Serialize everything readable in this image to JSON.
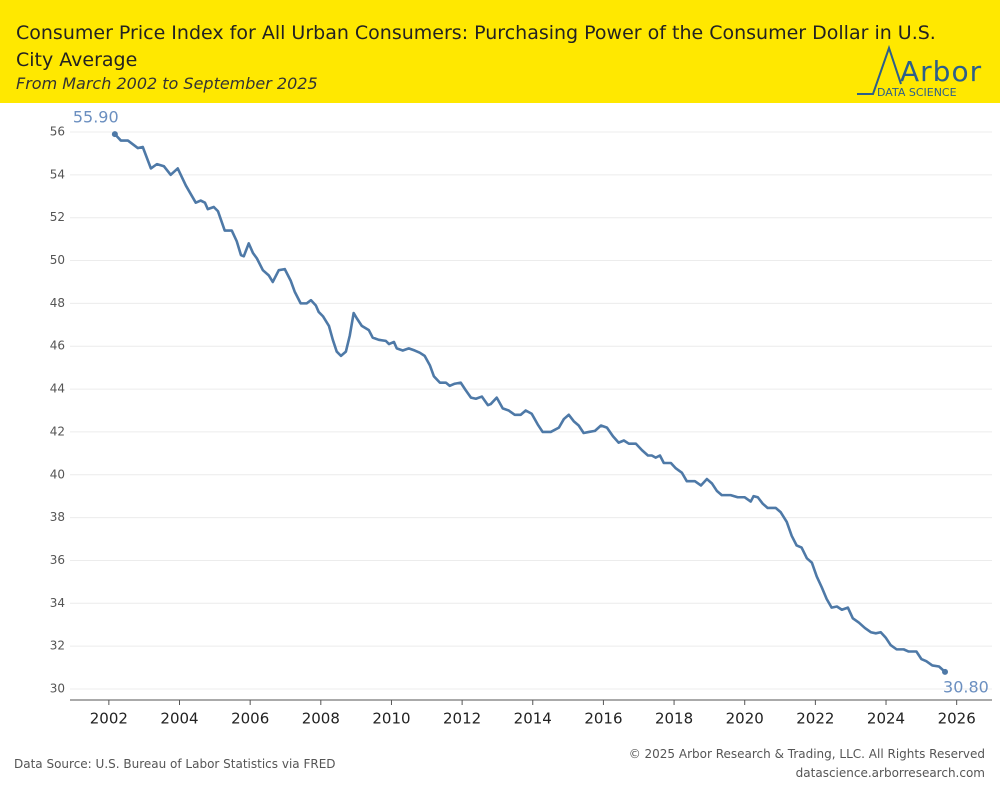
{
  "chart_data": {
    "type": "line",
    "title": "Consumer Price Index for All Urban Consumers: Purchasing Power of the Consumer Dollar in U.S. City Average",
    "subtitle": "From March 2002 to September 2025",
    "x": [
      2002.17,
      2002.34,
      2002.54,
      2002.82,
      2002.96,
      2003.19,
      2003.36,
      2003.56,
      2003.75,
      2003.95,
      2004.18,
      2004.46,
      2004.6,
      2004.72,
      2004.8,
      2004.97,
      2005.09,
      2005.28,
      2005.48,
      2005.62,
      2005.74,
      2005.82,
      2005.96,
      2006.08,
      2006.19,
      2006.36,
      2006.53,
      2006.64,
      2006.81,
      2006.98,
      2007.15,
      2007.26,
      2007.43,
      2007.6,
      2007.72,
      2007.86,
      2007.94,
      2008.06,
      2008.23,
      2008.34,
      2008.45,
      2008.57,
      2008.71,
      2008.82,
      2008.93,
      2009.02,
      2009.16,
      2009.36,
      2009.47,
      2009.64,
      2009.84,
      2009.93,
      2010.07,
      2010.15,
      2010.32,
      2010.49,
      2010.66,
      2010.8,
      2010.94,
      2011.09,
      2011.2,
      2011.37,
      2011.54,
      2011.65,
      2011.79,
      2011.96,
      2012.1,
      2012.25,
      2012.39,
      2012.56,
      2012.73,
      2012.81,
      2012.98,
      2013.15,
      2013.32,
      2013.49,
      2013.66,
      2013.8,
      2013.97,
      2014.14,
      2014.28,
      2014.51,
      2014.74,
      2014.88,
      2015.02,
      2015.16,
      2015.3,
      2015.44,
      2015.59,
      2015.76,
      2015.93,
      2016.1,
      2016.27,
      2016.43,
      2016.58,
      2016.72,
      2016.92,
      2017.09,
      2017.26,
      2017.37,
      2017.48,
      2017.6,
      2017.71,
      2017.91,
      2018.05,
      2018.22,
      2018.36,
      2018.59,
      2018.76,
      2018.93,
      2019.07,
      2019.21,
      2019.35,
      2019.6,
      2019.8,
      2020.0,
      2020.17,
      2020.25,
      2020.37,
      2020.51,
      2020.65,
      2020.88,
      2021.02,
      2021.19,
      2021.33,
      2021.47,
      2021.61,
      2021.76,
      2021.9,
      2022.04,
      2022.18,
      2022.32,
      2022.46,
      2022.61,
      2022.75,
      2022.92,
      2023.06,
      2023.23,
      2023.4,
      2023.57,
      2023.71,
      2023.85,
      2023.99,
      2024.13,
      2024.3,
      2024.5,
      2024.64,
      2024.86,
      2025.0,
      2025.14,
      2025.31,
      2025.5,
      2025.67
    ],
    "series": [
      {
        "color": "#4e79a7",
        "values": [
          55.9,
          55.6,
          55.6,
          55.25,
          55.3,
          54.3,
          54.5,
          54.4,
          54.0,
          54.3,
          53.5,
          52.7,
          52.8,
          52.7,
          52.4,
          52.5,
          52.3,
          51.4,
          51.4,
          50.9,
          50.25,
          50.2,
          50.8,
          50.35,
          50.1,
          49.55,
          49.3,
          49.0,
          49.55,
          49.6,
          49.05,
          48.55,
          48.0,
          48.0,
          48.15,
          47.9,
          47.6,
          47.4,
          46.95,
          46.3,
          45.75,
          45.55,
          45.75,
          46.5,
          47.55,
          47.3,
          46.95,
          46.75,
          46.4,
          46.3,
          46.25,
          46.1,
          46.2,
          45.9,
          45.8,
          45.9,
          45.8,
          45.7,
          45.55,
          45.1,
          44.6,
          44.3,
          44.3,
          44.15,
          44.25,
          44.3,
          43.95,
          43.6,
          43.55,
          43.65,
          43.25,
          43.3,
          43.6,
          43.1,
          43.0,
          42.8,
          42.8,
          43.0,
          42.85,
          42.35,
          42.0,
          42.0,
          42.2,
          42.6,
          42.8,
          42.5,
          42.3,
          41.95,
          42.0,
          42.05,
          42.3,
          42.2,
          41.8,
          41.5,
          41.6,
          41.45,
          41.45,
          41.15,
          40.9,
          40.9,
          40.8,
          40.9,
          40.55,
          40.55,
          40.3,
          40.1,
          39.7,
          39.7,
          39.5,
          39.8,
          39.6,
          39.25,
          39.05,
          39.05,
          38.95,
          38.95,
          38.75,
          39.0,
          38.95,
          38.65,
          38.45,
          38.45,
          38.25,
          37.8,
          37.15,
          36.7,
          36.6,
          36.1,
          35.9,
          35.25,
          34.75,
          34.2,
          33.8,
          33.85,
          33.7,
          33.8,
          33.3,
          33.1,
          32.85,
          32.65,
          32.6,
          32.65,
          32.4,
          32.05,
          31.85,
          31.85,
          31.75,
          31.75,
          31.4,
          31.3,
          31.1,
          31.05,
          30.8
        ],
        "value_labels": [
          "55.90",
          null,
          null,
          null,
          null,
          null,
          null,
          null,
          null,
          null,
          null,
          null,
          null,
          null,
          null,
          null,
          null,
          null,
          null,
          null,
          null,
          null,
          null,
          null,
          null,
          null,
          null,
          null,
          null,
          null,
          null,
          null,
          null,
          null,
          null,
          null,
          null,
          null,
          null,
          null,
          null,
          null,
          null,
          null,
          null,
          null,
          null,
          null,
          null,
          null,
          null,
          null,
          null,
          null,
          null,
          null,
          null,
          null,
          null,
          null,
          null,
          null,
          null,
          null,
          null,
          null,
          null,
          null,
          null,
          null,
          null,
          null,
          null,
          null,
          null,
          null,
          null,
          null,
          null,
          null,
          null,
          null,
          null,
          null,
          null,
          null,
          null,
          null,
          null,
          null,
          null,
          null,
          null,
          null,
          null,
          null,
          null,
          null,
          null,
          null,
          null,
          null,
          null,
          null,
          null,
          null,
          null,
          null,
          null,
          null,
          null,
          null,
          null,
          null,
          null,
          null,
          null,
          null,
          null,
          null,
          null,
          null,
          null,
          null,
          null,
          null,
          null,
          null,
          null,
          null,
          null,
          null,
          null,
          null,
          null,
          null,
          null,
          null,
          null,
          null,
          null,
          null,
          null,
          null,
          null,
          null,
          null,
          null,
          null,
          null,
          null,
          null,
          "30.80"
        ]
      }
    ],
    "xlim": [
      2000.9,
      2027.0
    ],
    "xticks": [
      2002,
      2004,
      2006,
      2008,
      2010,
      2012,
      2014,
      2016,
      2018,
      2020,
      2022,
      2024,
      2026
    ],
    "ylim": [
      30,
      56
    ],
    "yticks": [
      30,
      32,
      34,
      36,
      38,
      40,
      42,
      44,
      46,
      48,
      50,
      52,
      54,
      56
    ],
    "grid": true
  },
  "logo": {
    "name": "Arbor",
    "tagline": "DATA SCIENCE"
  },
  "footer": {
    "source": "Data Source: U.S. Bureau of Labor Statistics via FRED",
    "copyright": "© 2025 Arbor Research & Trading, LLC. All Rights Reserved",
    "website": "datascience.arborresearch.com"
  }
}
